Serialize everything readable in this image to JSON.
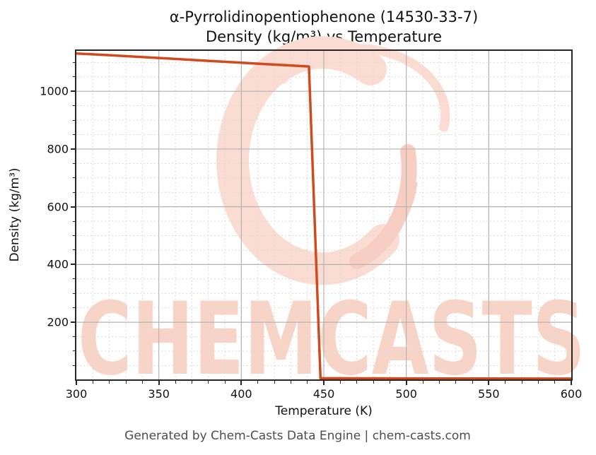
{
  "titles": {
    "line1": "α-Pyrrolidinopentiophenone (14530-33-7)",
    "line2": "Density (kg/m³) vs Temperature"
  },
  "footer": {
    "text": "Generated by Chem-Casts Data Engine | chem-casts.com"
  },
  "watermark": {
    "text": "CHEMCASTS",
    "logo": "brush-circle-swirl"
  },
  "colors": {
    "line": "#d2491e",
    "watermark_text": "#f8d4c7",
    "watermark_logo": "#fadcd2",
    "watermark_logo_dark": "#f7cec1",
    "grid_major": "#b3b3b3",
    "grid_minor": "#d9d9d9",
    "spine": "#262626",
    "title_text": "#111111",
    "footer_text": "#4d4d4d"
  },
  "chart_data": {
    "type": "line",
    "title": "α-Pyrrolidinopentiophenone (14530-33-7) — Density (kg/m³) vs Temperature",
    "xlabel": "Temperature (K)",
    "ylabel": "Density (kg/m³)",
    "xlim": [
      300,
      600
    ],
    "ylim": [
      2,
      1140
    ],
    "x_major_ticks": [
      300,
      350,
      400,
      450,
      500,
      550,
      600
    ],
    "x_minor_step": 10,
    "y_major_ticks": [
      200,
      400,
      600,
      800,
      1000
    ],
    "y_minor_step": 50,
    "grid": "major-solid, minor-dashed",
    "legend": "none",
    "series": [
      {
        "name": "density",
        "color": "#d2491e",
        "points": [
          [
            300,
            1131
          ],
          [
            320,
            1125
          ],
          [
            340,
            1118.5
          ],
          [
            360,
            1112
          ],
          [
            380,
            1105.5
          ],
          [
            400,
            1099
          ],
          [
            420,
            1092.5
          ],
          [
            441,
            1086
          ],
          [
            448,
            6.0
          ],
          [
            460,
            5.9
          ],
          [
            480,
            5.7
          ],
          [
            500,
            5.5
          ],
          [
            520,
            5.3
          ],
          [
            540,
            5.1
          ],
          [
            560,
            5.0
          ],
          [
            580,
            4.8
          ],
          [
            600,
            4.7
          ]
        ]
      }
    ]
  }
}
